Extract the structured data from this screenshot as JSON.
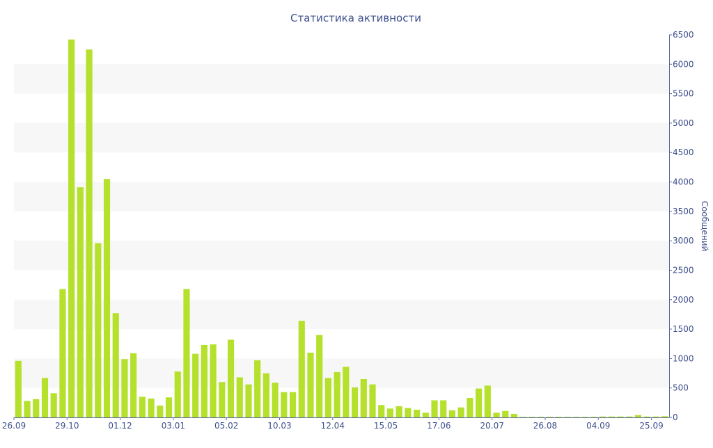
{
  "chart_data": {
    "type": "bar",
    "title": "Статистика активности",
    "ylabel": "Сообщений",
    "ylim": [
      0,
      6500
    ],
    "yticks": [
      0,
      500,
      1000,
      1500,
      2000,
      2500,
      3000,
      3500,
      4000,
      4500,
      5000,
      5500,
      6000,
      6500
    ],
    "x_tick_labels": [
      {
        "index": 0,
        "label": "26.09"
      },
      {
        "index": 6,
        "label": "29.10"
      },
      {
        "index": 12,
        "label": "01.12"
      },
      {
        "index": 18,
        "label": "03.01"
      },
      {
        "index": 24,
        "label": "05.02"
      },
      {
        "index": 30,
        "label": "10.03"
      },
      {
        "index": 36,
        "label": "12.04"
      },
      {
        "index": 42,
        "label": "15.05"
      },
      {
        "index": 48,
        "label": "17.06"
      },
      {
        "index": 54,
        "label": "20.07"
      },
      {
        "index": 60,
        "label": "26.08"
      },
      {
        "index": 66,
        "label": "04.09"
      },
      {
        "index": 72,
        "label": "25.09"
      }
    ],
    "values": [
      960,
      280,
      310,
      670,
      410,
      2180,
      6420,
      3910,
      6250,
      2960,
      4050,
      1770,
      990,
      1090,
      350,
      320,
      200,
      340,
      780,
      2180,
      1080,
      1230,
      1240,
      600,
      1320,
      680,
      560,
      970,
      750,
      590,
      430,
      430,
      1640,
      1100,
      1400,
      670,
      770,
      860,
      510,
      650,
      560,
      210,
      150,
      190,
      160,
      130,
      80,
      290,
      290,
      120,
      170,
      330,
      490,
      540,
      80,
      110,
      60,
      10,
      10,
      10,
      10,
      10,
      10,
      10,
      10,
      10,
      15,
      15,
      15,
      15,
      40,
      15,
      15,
      20
    ],
    "bar_color": "#b5e02b",
    "band_color": "#f7f7f7",
    "text_color": "#3e4f8c",
    "grid": "alternating horizontal bands",
    "y_axis_position": "right"
  }
}
